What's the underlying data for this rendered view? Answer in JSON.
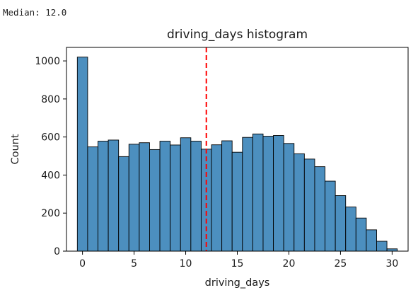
{
  "output": {
    "stdout": "Median: 12.0"
  },
  "chart_data": {
    "type": "bar",
    "title": "driving_days histogram",
    "xlabel": "driving_days",
    "ylabel": "Count",
    "x": [
      0,
      1,
      2,
      3,
      4,
      5,
      6,
      7,
      8,
      9,
      10,
      11,
      12,
      13,
      14,
      15,
      16,
      17,
      18,
      19,
      20,
      21,
      22,
      23,
      24,
      25,
      26,
      27,
      28,
      29,
      30
    ],
    "values": [
      1020,
      548,
      578,
      584,
      497,
      562,
      570,
      534,
      578,
      558,
      596,
      578,
      536,
      559,
      580,
      520,
      598,
      616,
      604,
      608,
      566,
      512,
      484,
      444,
      368,
      292,
      232,
      174,
      112,
      52,
      12
    ],
    "bin_width": 1,
    "xlim": [
      -1.55,
      31.55
    ],
    "ylim": [
      0,
      1071
    ],
    "xticks": [
      0,
      5,
      10,
      15,
      20,
      25,
      30
    ],
    "yticks": [
      0,
      200,
      400,
      600,
      800,
      1000
    ],
    "median": 12.0,
    "median_line_color": "#ff0000",
    "bar_color": "#4c8fbf",
    "bar_edge_color": "#000000",
    "grid": false,
    "legend": "none"
  }
}
